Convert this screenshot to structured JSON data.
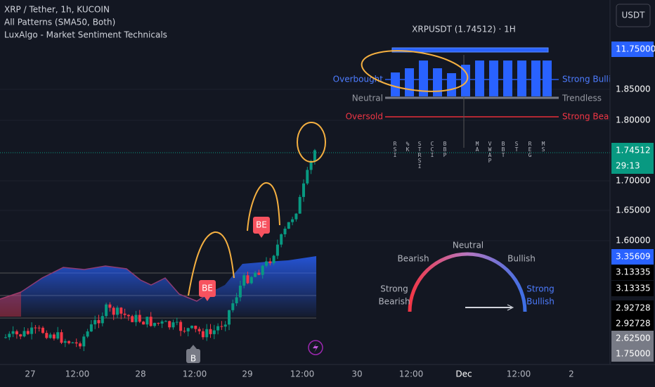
{
  "header": {
    "symbol": "XRP / Tether, 1h, KUCOIN",
    "indicators": [
      "All Patterns (SMA50, Both)",
      "LuxAlgo - Market Sentiment Technicals"
    ],
    "currency": "USDT"
  },
  "price_axis": [
    "11.75000",
    "1.85000",
    "1.80000",
    "1.74512",
    "29:13",
    "1.70000",
    "1.65000",
    "1.60000",
    "3.35609",
    "3.13335",
    "3.13335",
    "2.92728",
    "2.92728",
    "2.62500",
    "1.75000"
  ],
  "time_axis": [
    "27",
    "12:00",
    "28",
    "12:00",
    "29",
    "12:00",
    "30",
    "12:00",
    "Dec",
    "12:00",
    "2"
  ],
  "panel": {
    "title": "XRPUSDT (1.74512) · 1H",
    "left_labels": [
      "Overbought",
      "Neutral",
      "Oversold"
    ],
    "right_labels": [
      "Strong Bullish Tren",
      "Trendless",
      "Strong Bearish Tre"
    ],
    "indicators": [
      "RSI",
      "%K",
      "STRSI",
      "CCI",
      "BBP",
      "MA",
      "VWAP",
      "BBT",
      "ST",
      "REG",
      "MS"
    ]
  },
  "gauge": {
    "top": "Neutral",
    "left": "Bearish",
    "right": "Bullish",
    "strong_left": [
      "Strong",
      "Bearish"
    ],
    "strong_right": [
      "Strong",
      "Bullish"
    ]
  },
  "markers": [
    "BE",
    "BE",
    "B"
  ]
}
